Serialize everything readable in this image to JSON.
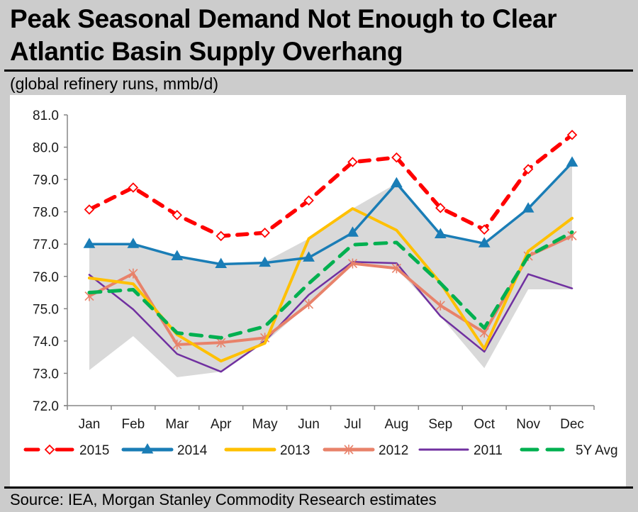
{
  "header": {
    "title_line1": "Peak Seasonal Demand Not Enough to Clear",
    "title_line2": "Atlantic Basin Supply Overhang",
    "subtitle": "(global refinery runs, mmb/d)"
  },
  "footer": {
    "source": "Source: IEA, Morgan Stanley Commodity Research estimates"
  },
  "chart_data": {
    "type": "line",
    "title": "Peak Seasonal Demand Not Enough to Clear Atlantic Basin Supply Overhang",
    "subtitle": "(global refinery runs, mmb/d)",
    "xlabel": "",
    "ylabel": "mmb/d",
    "categories": [
      "Jan",
      "Feb",
      "Mar",
      "Apr",
      "May",
      "Jun",
      "Jul",
      "Aug",
      "Sep",
      "Oct",
      "Nov",
      "Dec"
    ],
    "ylim": [
      72.0,
      81.0
    ],
    "yticks": [
      "72.0",
      "73.0",
      "74.0",
      "75.0",
      "76.0",
      "77.0",
      "78.0",
      "79.0",
      "80.0",
      "81.0"
    ],
    "grid": false,
    "legend_position": "bottom",
    "range_band": {
      "name": "Range",
      "color": "#d9d9d9",
      "max": [
        77.0,
        77.0,
        76.62,
        76.38,
        76.45,
        77.17,
        78.1,
        78.88,
        77.3,
        77.02,
        78.1,
        79.52
      ],
      "min": [
        73.1,
        74.15,
        72.88,
        73.05,
        73.95,
        75.14,
        76.4,
        76.25,
        74.77,
        73.16,
        75.6,
        75.6
      ]
    },
    "series": [
      {
        "name": "2015",
        "color": "#ff0000",
        "style": "dashed",
        "marker": "open-diamond",
        "values": [
          78.07,
          78.75,
          77.9,
          77.25,
          77.35,
          78.35,
          79.54,
          79.68,
          78.12,
          77.45,
          79.32,
          80.38
        ]
      },
      {
        "name": "2014",
        "color": "#1a7db6",
        "style": "solid",
        "marker": "triangle",
        "values": [
          77.0,
          77.0,
          76.62,
          76.38,
          76.42,
          76.58,
          77.35,
          78.88,
          77.3,
          77.02,
          78.1,
          79.52
        ]
      },
      {
        "name": "2013",
        "color": "#ffc000",
        "style": "solid",
        "marker": "none",
        "values": [
          75.95,
          75.77,
          74.2,
          73.38,
          73.93,
          77.17,
          78.1,
          77.43,
          75.8,
          73.76,
          76.78,
          77.8
        ]
      },
      {
        "name": "2012",
        "color": "#e8826a",
        "style": "solid",
        "marker": "star",
        "values": [
          75.39,
          76.09,
          73.89,
          73.95,
          74.1,
          75.14,
          76.4,
          76.25,
          75.1,
          74.26,
          76.63,
          77.26
        ]
      },
      {
        "name": "2011",
        "color": "#7030a0",
        "style": "solid",
        "marker": "none",
        "values": [
          76.05,
          74.98,
          73.6,
          73.05,
          74.0,
          75.43,
          76.45,
          76.41,
          74.77,
          73.67,
          76.07,
          75.63
        ]
      },
      {
        "name": "5Y Avg",
        "color": "#00b050",
        "style": "dashed",
        "marker": "none",
        "values": [
          75.5,
          75.59,
          74.25,
          74.1,
          74.45,
          75.78,
          76.98,
          77.05,
          75.79,
          74.4,
          76.63,
          77.37
        ]
      }
    ]
  }
}
